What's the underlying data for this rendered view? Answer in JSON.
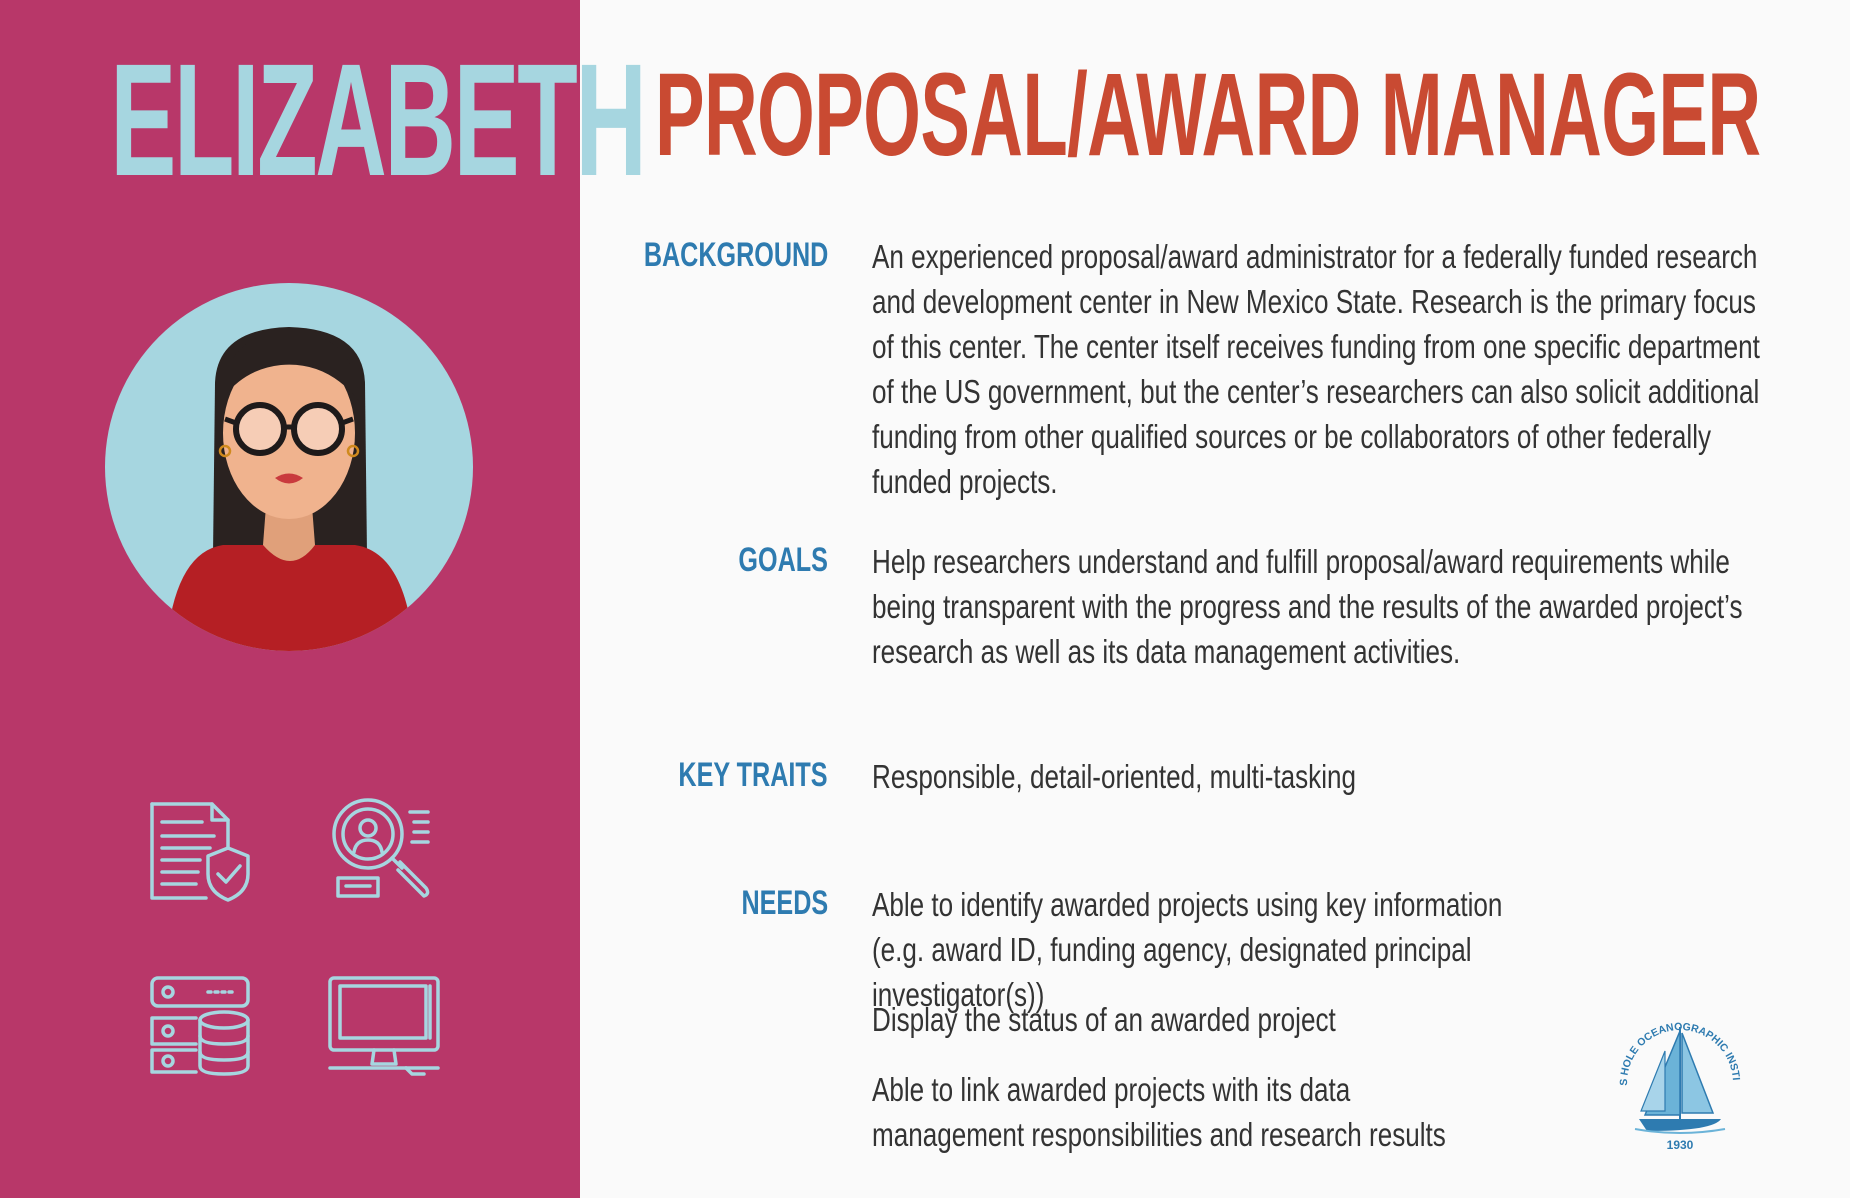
{
  "persona": {
    "name": "ELIZABETH",
    "role": "PROPOSAL/AWARD MANAGER"
  },
  "sections": {
    "background": {
      "label": "BACKGROUND",
      "text": "An experienced proposal/award administrator for a federally funded research and development center in New Mexico State. Research is the primary focus of this center. The center itself receives funding from one specific department of the US government, but the center’s researchers can also solicit additional funding from other qualified sources or be collaborators of other federally funded projects."
    },
    "goals": {
      "label": "GOALS",
      "text": "Help researchers understand and fulfill proposal/award requirements while being transparent with the progress and the results of the awarded project’s research as well as its data management activities."
    },
    "key_traits": {
      "label": "KEY TRAITS",
      "text": "Responsible, detail-oriented, multi-tasking"
    },
    "needs": {
      "label": "NEEDS",
      "items": [
        "Able to identify awarded projects using key information (e.g. award ID, funding agency, designated principal investigator(s))",
        "Display the status of an awarded project",
        "Able to link awarded projects with its data management responsibilities and research results"
      ]
    }
  },
  "logo": {
    "text": "WOODS HOLE OCEANOGRAPHIC INSTITUTION",
    "year": "1930"
  },
  "icons": [
    "secure-document-icon",
    "user-search-icon",
    "database-server-icon",
    "computer-monitor-icon"
  ],
  "colors": {
    "sidebar": "#b83769",
    "name": "#a6d6e0",
    "title": "#c94a32",
    "label": "#2e7bb0",
    "body_text": "#333333",
    "logo": "#2e7bb0"
  }
}
